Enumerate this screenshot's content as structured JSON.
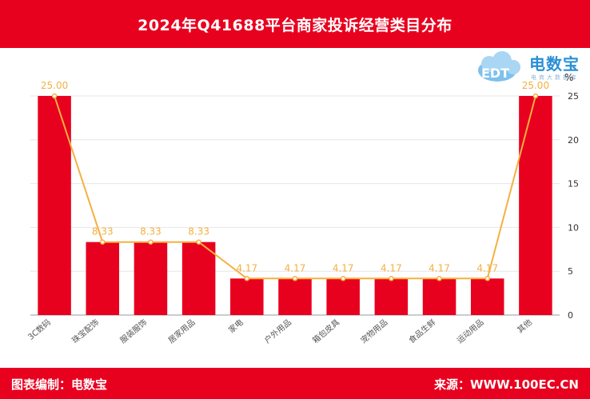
{
  "header": {
    "title": "2024年Q41688平台商家投诉经营类目分布"
  },
  "footer": {
    "left": "图表编制：电数宝",
    "right": "来源：WWW.100EC.CN"
  },
  "logo": {
    "text": "电数宝",
    "sub": "电商大数据库",
    "mark": "EDT"
  },
  "unit": "%",
  "colors": {
    "bar": "#e8001f",
    "line": "#f5b041",
    "header": "#e8001f"
  },
  "chart_data": {
    "type": "bar",
    "categories": [
      "3C数码",
      "珠宝配饰",
      "服装服饰",
      "居家用品",
      "家电",
      "户外用品",
      "箱包皮具",
      "宠物用品",
      "食品生鲜",
      "运动用品",
      "其他"
    ],
    "series": [
      {
        "type": "bar",
        "values": [
          25.0,
          8.33,
          8.33,
          8.33,
          4.17,
          4.17,
          4.17,
          4.17,
          4.17,
          4.17,
          25.0
        ]
      },
      {
        "type": "line",
        "values": [
          25.0,
          8.33,
          8.33,
          8.33,
          4.17,
          4.17,
          4.17,
          4.17,
          4.17,
          4.17,
          25.0
        ]
      }
    ],
    "data_labels": [
      "25.00",
      "8.33",
      "8.33",
      "8.33",
      "4.17",
      "4.17",
      "4.17",
      "4.17",
      "4.17",
      "4.17",
      "25.00"
    ],
    "yticks": [
      "0",
      "5",
      "10",
      "15",
      "20",
      "25"
    ],
    "ylim": [
      0,
      25
    ],
    "yaxis_position": "right",
    "grid": true,
    "legend": "none"
  }
}
